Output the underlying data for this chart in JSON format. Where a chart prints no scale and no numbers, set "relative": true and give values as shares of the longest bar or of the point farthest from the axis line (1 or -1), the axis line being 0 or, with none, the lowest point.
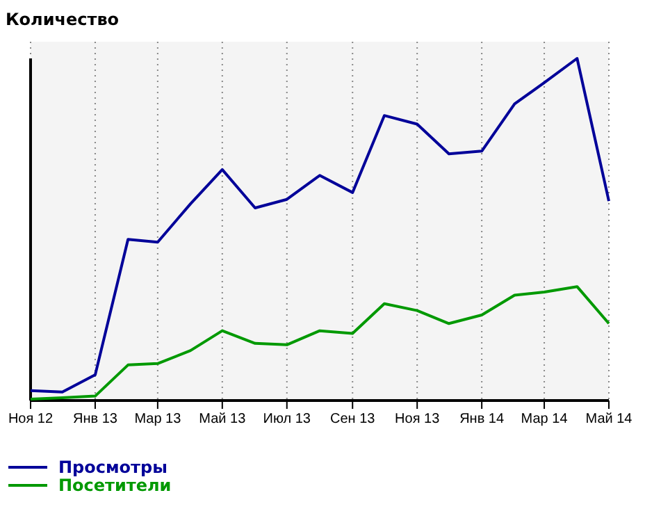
{
  "chart_data": {
    "type": "line",
    "ylabel": "Количество",
    "relative": true,
    "x": [
      "2012-11",
      "2012-12",
      "2013-01",
      "2013-02",
      "2013-03",
      "2013-04",
      "2013-05",
      "2013-06",
      "2013-07",
      "2013-08",
      "2013-09",
      "2013-10",
      "2013-11",
      "2013-12",
      "2014-01",
      "2014-02",
      "2014-03",
      "2014-04",
      "2014-05"
    ],
    "xlim": [
      "2012-11",
      "2014-05"
    ],
    "xticks": [
      {
        "value": "2012-11",
        "label": "Ноя 12"
      },
      {
        "value": "2013-01",
        "label": "Янв 13"
      },
      {
        "value": "2013-03",
        "label": "Мар 13"
      },
      {
        "value": "2013-05",
        "label": "Май 13"
      },
      {
        "value": "2013-07",
        "label": "Июл 13"
      },
      {
        "value": "2013-09",
        "label": "Сен 13"
      },
      {
        "value": "2013-11",
        "label": "Ноя 13"
      },
      {
        "value": "2014-01",
        "label": "Янв 14"
      },
      {
        "value": "2014-03",
        "label": "Мар 14"
      },
      {
        "value": "2014-05",
        "label": "Май 14"
      }
    ],
    "series": [
      {
        "name": "Просмотры",
        "color": "#000099",
        "values": [
          0.029,
          0.025,
          0.075,
          0.471,
          0.463,
          0.575,
          0.675,
          0.563,
          0.588,
          0.658,
          0.608,
          0.833,
          0.808,
          0.721,
          0.729,
          0.867,
          0.929,
          1,
          0.583
        ]
      },
      {
        "name": "Посетители",
        "color": "#009900",
        "values": [
          0.004,
          0.008,
          0.013,
          0.104,
          0.108,
          0.146,
          0.204,
          0.167,
          0.163,
          0.204,
          0.196,
          0.283,
          0.263,
          0.225,
          0.25,
          0.308,
          0.317,
          0.333,
          0.225
        ]
      }
    ],
    "grid": "x",
    "legend": "bottom left",
    "marker": "none",
    "line_style": "solid"
  }
}
